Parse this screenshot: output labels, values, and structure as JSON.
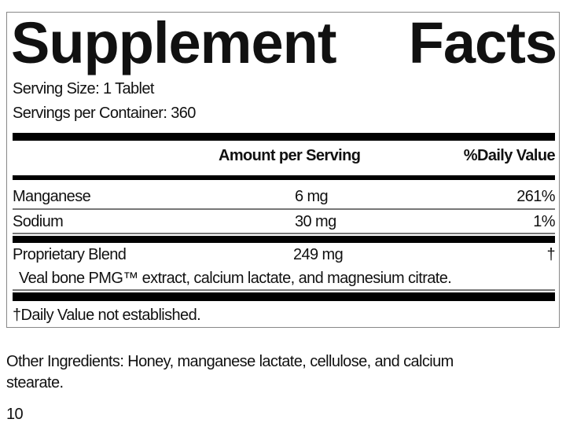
{
  "title_words": [
    "Supplement",
    "Facts"
  ],
  "serving_size": "Serving Size: 1 Tablet",
  "servings_per_container": "Servings per Container: 360",
  "header": {
    "amount": "Amount per Serving",
    "daily_value": "%Daily Value"
  },
  "rows": [
    {
      "name": "Manganese",
      "amount": "6 mg",
      "dv": "261%"
    },
    {
      "name": "Sodium",
      "amount": "30 mg",
      "dv": "1%"
    },
    {
      "name": "Proprietary Blend",
      "amount": "249 mg",
      "dv": "†"
    }
  ],
  "blend_contents": "Veal bone PMG™ extract, calcium lactate, and magnesium citrate.",
  "footnote": "†Daily Value not established.",
  "other_ingredients": [
    "Other Ingredients: Honey, manganese lactate, cellulose, and calcium",
    "stearate."
  ],
  "page_number": "10"
}
